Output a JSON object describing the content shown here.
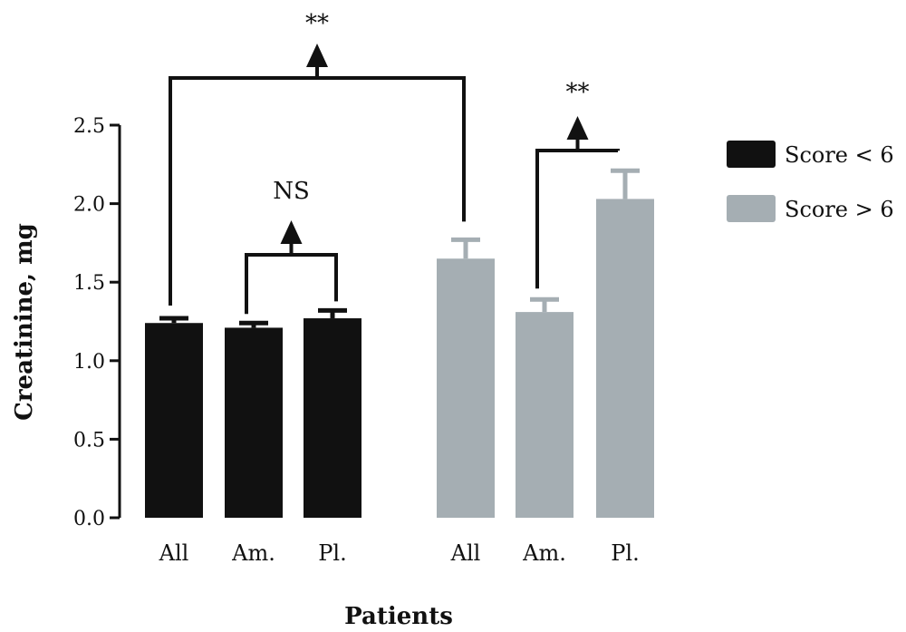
{
  "chart_data": {
    "type": "bar",
    "xlabel": "Patients",
    "ylabel": "Creatinine, mg",
    "ylim": [
      0,
      2.5
    ],
    "yticks": [
      "0.0",
      "0.5",
      "1.0",
      "1.5",
      "2.0",
      "2.5"
    ],
    "ytick_values": [
      0,
      0.5,
      1.0,
      1.5,
      2.0,
      2.5
    ],
    "grid": false,
    "legend_position": "right",
    "colors": {
      "score_lt_6": "#111111",
      "score_gt_6": "#a5aeb3"
    },
    "series": [
      {
        "name": "Score < 6",
        "categories": [
          "All",
          "Am.",
          "Pl."
        ],
        "values": [
          1.24,
          1.21,
          1.27
        ],
        "errors": [
          0.03,
          0.03,
          0.05
        ]
      },
      {
        "name": "Score > 6",
        "categories": [
          "All",
          "Am.",
          "Pl."
        ],
        "values": [
          1.65,
          1.31,
          2.03
        ],
        "errors": [
          0.12,
          0.08,
          0.18
        ]
      }
    ],
    "annotations": [
      {
        "label": "NS",
        "between": [
          "Score < 6 Am.",
          "Score < 6 Pl."
        ]
      },
      {
        "label": "**",
        "between": [
          "Score > 6 Am.",
          "Score > 6 Pl."
        ]
      },
      {
        "label": "**",
        "between": [
          "Score < 6 All",
          "Score > 6 All"
        ]
      }
    ]
  }
}
